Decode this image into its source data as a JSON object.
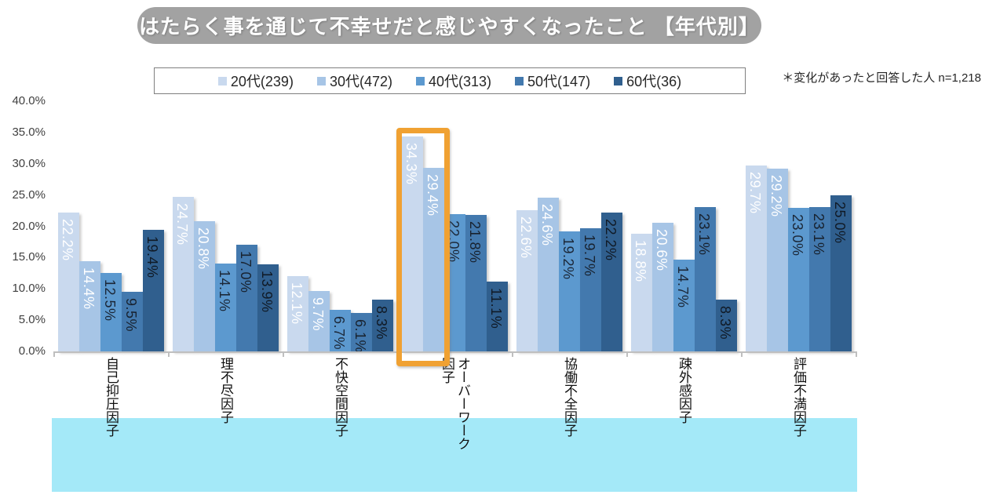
{
  "title": "はたらく事を通じて不幸せだと感じやすくなったこと 【年代別】",
  "note": "＊変化があったと回答した人  n=1,218",
  "colors": {
    "banner": "#a2a2a2",
    "band": "#a4e9f8",
    "highlight": "#f0a132",
    "axis": "#bfbfbf",
    "label_light": "#ffffff",
    "label_dark": "#1b2737"
  },
  "chart_data": {
    "type": "bar",
    "title": "はたらく事を通じて不幸せだと感じやすくなったこと 【年代別】",
    "subtitle": "＊変化があったと回答した人  n=1,218",
    "xlabel": "",
    "ylabel": "",
    "ylim": [
      0,
      40
    ],
    "grid": false,
    "legend_position": "top",
    "value_suffix": "%",
    "categories": [
      "自己抑圧因子",
      "理不尽因子",
      "不快空間因子",
      "オーバーワーク因子",
      "協働不全因子",
      "疎外感因子",
      "評価不満因子"
    ],
    "categories_display": [
      "自己抑圧因子",
      "理不尽因子",
      "不快空間因子",
      "オーバーワーク\n因子",
      "協働不全因子",
      "疎外感因子",
      "評価不満因子"
    ],
    "y_ticks": [
      "0.0%",
      "5.0%",
      "10.0%",
      "15.0%",
      "20.0%",
      "25.0%",
      "30.0%",
      "35.0%",
      "40.0%"
    ],
    "series": [
      {
        "name": "20代(239)",
        "color": "#c9d9ee",
        "label_color": "#ffffff",
        "values": [
          22.2,
          24.7,
          12.1,
          34.3,
          22.6,
          18.8,
          29.7
        ]
      },
      {
        "name": "30代(472)",
        "color": "#a7c5e6",
        "label_color": "#ffffff",
        "values": [
          14.4,
          20.8,
          9.7,
          29.4,
          24.6,
          20.6,
          29.2
        ]
      },
      {
        "name": "40代(313)",
        "color": "#5c99cf",
        "label_color": "#1b2737",
        "values": [
          12.5,
          14.1,
          6.7,
          22.0,
          19.2,
          14.7,
          23.0
        ]
      },
      {
        "name": "50代(147)",
        "color": "#4379ae",
        "label_color": "#18222f",
        "values": [
          9.5,
          17.0,
          6.1,
          21.8,
          19.7,
          23.1,
          23.1
        ]
      },
      {
        "name": "60代(36)",
        "color": "#305f8e",
        "label_color": "#101a26",
        "values": [
          19.4,
          13.9,
          8.3,
          11.1,
          22.2,
          8.3,
          25.0
        ]
      }
    ],
    "data_labels": {
      "format": "0.0%",
      "rotation": "vertical",
      "position": "inside-end"
    },
    "highlight": {
      "category": "オーバーワーク因子",
      "category_index": 3,
      "series_indices": [
        0,
        1
      ],
      "series": [
        "20代(239)",
        "30代(472)"
      ]
    }
  }
}
